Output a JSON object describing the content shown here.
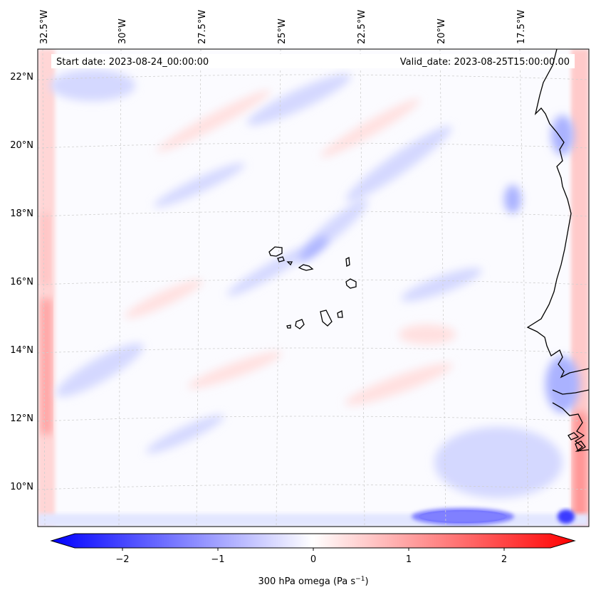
{
  "map": {
    "start_date": "Start date: 2023-08-24_00:00:00",
    "valid_date": "Valid_date: 2023-08-25T15:00:00.00",
    "lon_labels": [
      "32.5°W",
      "30°W",
      "27.5°W",
      "25°W",
      "22.5°W",
      "20°W",
      "17.5°W"
    ],
    "lat_labels": [
      "22°N",
      "20°N",
      "18°N",
      "16°N",
      "14°N",
      "12°N",
      "10°N"
    ],
    "features": [
      "Cabo Verde islands",
      "West African coastline"
    ]
  },
  "colorbar": {
    "label": "300 hPa omega (Pa s",
    "label_sup": "−1",
    "label_end": ")",
    "ticks": [
      "−2",
      "−1",
      "0",
      "1",
      "2"
    ],
    "cmap": "bwr",
    "range": [
      -2.75,
      2.75
    ],
    "colors": {
      "negative": "#0000ff",
      "zero": "#ffffff",
      "positive": "#ff0000"
    }
  }
}
